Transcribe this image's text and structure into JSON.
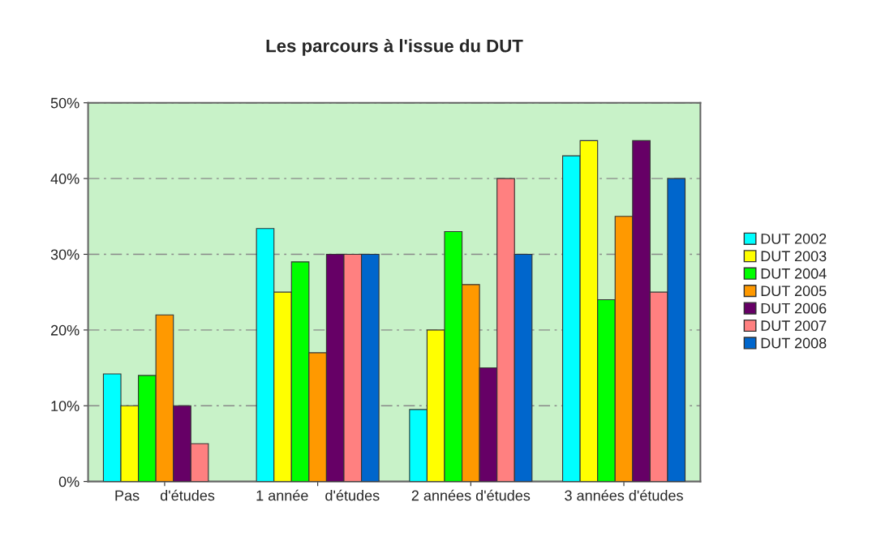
{
  "chart_data": {
    "type": "bar",
    "title": "Les parcours à l'issue du DUT",
    "categories": [
      "Pas     d'études",
      "1 année    d'études",
      "2 années d'études",
      "3 années d'études"
    ],
    "series": [
      {
        "name": "DUT 2002",
        "color": "#00ffff",
        "values": [
          14.2,
          33.4,
          9.5,
          43
        ]
      },
      {
        "name": "DUT 2003",
        "color": "#ffff00",
        "values": [
          10,
          25,
          20,
          45
        ]
      },
      {
        "name": "DUT 2004",
        "color": "#00ff00",
        "values": [
          14,
          29,
          33,
          24
        ]
      },
      {
        "name": "DUT 2005",
        "color": "#ff9900",
        "values": [
          22,
          17,
          26,
          35
        ]
      },
      {
        "name": "DUT 2006",
        "color": "#660066",
        "values": [
          10,
          30,
          15,
          45
        ]
      },
      {
        "name": "DUT 2007",
        "color": "#ff8080",
        "values": [
          5,
          30,
          40,
          25
        ]
      },
      {
        "name": "DUT 2008",
        "color": "#0066cc",
        "values": [
          null,
          30,
          30,
          40
        ]
      }
    ],
    "ylim": [
      0,
      50
    ],
    "yticks": [
      {
        "value": 0,
        "label": "0%"
      },
      {
        "value": 10,
        "label": "10%"
      },
      {
        "value": 20,
        "label": "20%"
      },
      {
        "value": 30,
        "label": "30%"
      },
      {
        "value": 40,
        "label": "40%"
      },
      {
        "value": 50,
        "label": "50%"
      }
    ],
    "grid": "y",
    "legend": "right"
  }
}
